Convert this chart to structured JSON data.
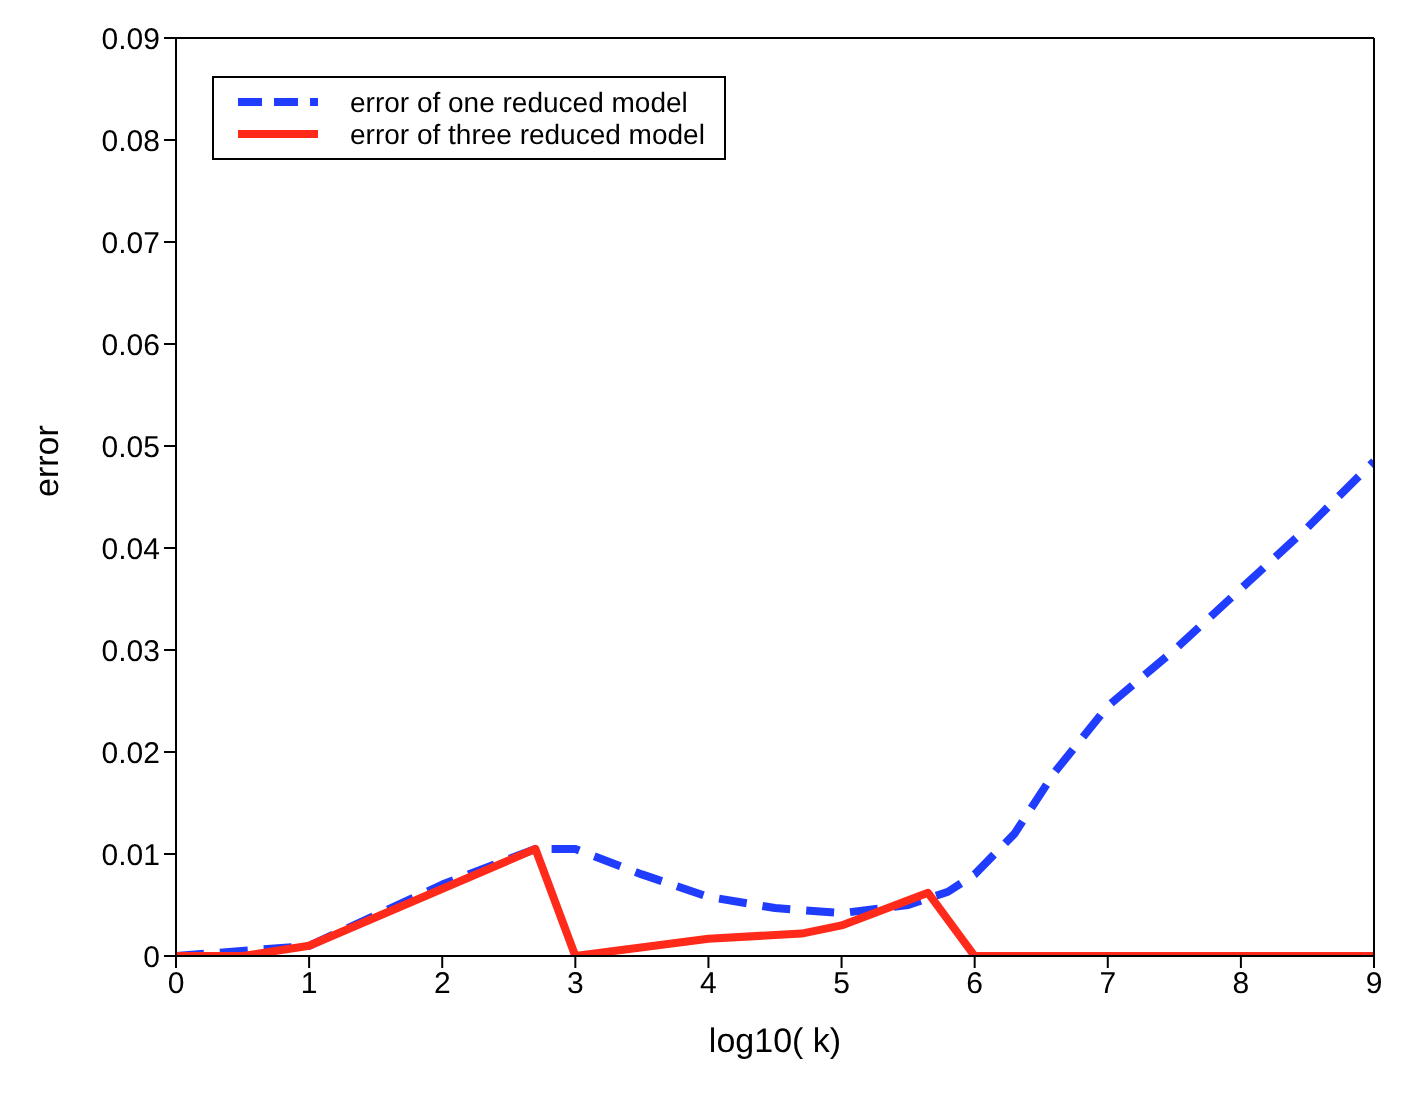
{
  "chart_data": {
    "type": "line",
    "xlabel": "log10( k)",
    "ylabel": "error",
    "xlim": [
      0,
      9
    ],
    "xticks": [
      0,
      1,
      2,
      3,
      4,
      5,
      6,
      7,
      8,
      9
    ],
    "ylim": [
      0,
      0.09
    ],
    "yticks": [
      0,
      0.01,
      0.02,
      0.03,
      0.04,
      0.05,
      0.06,
      0.07,
      0.08,
      0.09
    ],
    "grid": false,
    "legend": "top left",
    "marker": "none",
    "series": [
      {
        "name": "error of one reduced model",
        "color": "#1f3cff",
        "line_style": "dashed",
        "x": [
          0,
          1,
          2,
          2.7,
          3,
          3.5,
          4,
          4.5,
          5,
          5.5,
          5.8,
          6,
          6.3,
          6.6,
          7,
          7.5,
          8,
          8.5,
          9
        ],
        "values": [
          0,
          0.001,
          0.007,
          0.0105,
          0.0105,
          0.008,
          0.0058,
          0.0047,
          0.0042,
          0.005,
          0.0063,
          0.008,
          0.012,
          0.018,
          0.0245,
          0.03,
          0.036,
          0.042,
          0.0485
        ]
      },
      {
        "name": "error of three reduced model",
        "color": "#ff2a1a",
        "line_style": "solid",
        "x": [
          0,
          0.5,
          1,
          2.7,
          3,
          4,
          4.7,
          5,
          5.65,
          6,
          9
        ],
        "values": [
          0,
          0,
          0.001,
          0.0105,
          0,
          0.0017,
          0.0022,
          0.003,
          0.0062,
          0,
          0
        ]
      }
    ]
  }
}
